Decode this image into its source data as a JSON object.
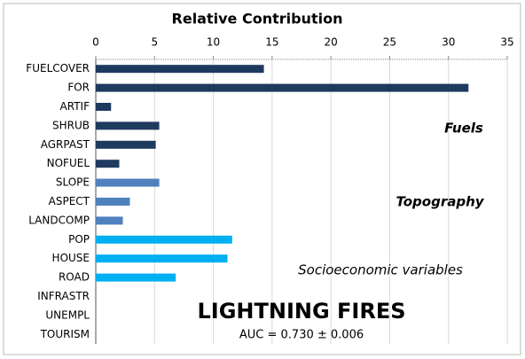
{
  "chart_data": {
    "type": "bar",
    "orientation": "horizontal",
    "title": "Relative Contribution",
    "categories": [
      "FUELCOVER",
      "FOR",
      "ARTIF",
      "SHRUB",
      "AGRPAST",
      "NOFUEL",
      "SLOPE",
      "ASPECT",
      "LANDCOMP",
      "POP",
      "HOUSE",
      "ROAD",
      "INFRASTR",
      "UNEMPL",
      "TOURISM"
    ],
    "values": [
      14.3,
      31.7,
      1.3,
      5.4,
      5.1,
      2.0,
      5.4,
      2.9,
      2.3,
      11.6,
      11.2,
      6.8,
      0,
      0,
      0
    ],
    "colors": [
      "#1f3a5f",
      "#1f3a5f",
      "#1f3a5f",
      "#1f3a5f",
      "#1f3a5f",
      "#1f3a5f",
      "#4f81bd",
      "#4f81bd",
      "#4f81bd",
      "#00b0f0",
      "#00b0f0",
      "#00b0f0",
      "#00b0f0",
      "#00b0f0",
      "#00b0f0"
    ],
    "xlim": [
      0,
      35
    ],
    "xticks": [
      0,
      5,
      10,
      15,
      20,
      25,
      30,
      35
    ],
    "grid": true,
    "annotations": [
      "Fuels",
      "Topography",
      "Socioeconomic variables",
      "LIGHTNING FIRES",
      "AUC = 0.730 ± 0.006"
    ]
  }
}
